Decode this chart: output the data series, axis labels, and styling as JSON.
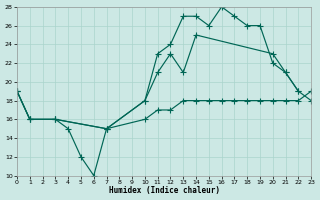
{
  "xlabel": "Humidex (Indice chaleur)",
  "bg_color": "#cce8e4",
  "grid_color": "#aad4cc",
  "line_color": "#006655",
  "xlim": [
    0,
    23
  ],
  "ylim": [
    10,
    28
  ],
  "xticks": [
    0,
    1,
    2,
    3,
    4,
    5,
    6,
    7,
    8,
    9,
    10,
    11,
    12,
    13,
    14,
    15,
    16,
    17,
    18,
    19,
    20,
    21,
    22,
    23
  ],
  "yticks": [
    10,
    12,
    14,
    16,
    18,
    20,
    22,
    24,
    26,
    28
  ],
  "curves": [
    {
      "x": [
        0,
        1,
        3,
        4,
        5,
        6,
        7,
        10,
        11,
        12,
        13,
        14,
        20,
        21,
        22
      ],
      "y": [
        19,
        16,
        16,
        15,
        12,
        10,
        15,
        18,
        21,
        23,
        21,
        25,
        23,
        21,
        19
      ]
    },
    {
      "x": [
        0,
        1,
        3,
        7,
        10,
        11,
        12,
        13,
        14,
        15,
        16,
        17,
        18,
        19,
        20,
        21,
        22,
        23
      ],
      "y": [
        19,
        16,
        16,
        15,
        18,
        23,
        24,
        27,
        27,
        26,
        28,
        27,
        26,
        26,
        22,
        21,
        19,
        18
      ]
    },
    {
      "x": [
        0,
        1,
        3,
        7,
        10,
        11,
        12,
        13,
        14,
        15,
        16,
        17,
        18,
        19,
        20,
        21,
        22,
        23
      ],
      "y": [
        19,
        16,
        16,
        15,
        16,
        17,
        17,
        18,
        18,
        18,
        18,
        18,
        18,
        18,
        18,
        18,
        18,
        19
      ]
    }
  ]
}
